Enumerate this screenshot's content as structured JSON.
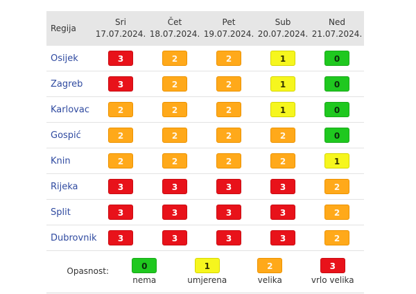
{
  "header": {
    "region_label": "Regija",
    "days": [
      {
        "name": "Sri",
        "date": "17.07.2024."
      },
      {
        "name": "Čet",
        "date": "18.07.2024."
      },
      {
        "name": "Pet",
        "date": "19.07.2024."
      },
      {
        "name": "Sub",
        "date": "20.07.2024."
      },
      {
        "name": "Ned",
        "date": "21.07.2024."
      }
    ]
  },
  "rows": [
    {
      "region": "Osijek",
      "levels": [
        3,
        2,
        2,
        1,
        0
      ]
    },
    {
      "region": "Zagreb",
      "levels": [
        3,
        2,
        2,
        1,
        0
      ]
    },
    {
      "region": "Karlovac",
      "levels": [
        2,
        2,
        2,
        1,
        0
      ]
    },
    {
      "region": "Gospić",
      "levels": [
        2,
        2,
        2,
        2,
        0
      ]
    },
    {
      "region": "Knin",
      "levels": [
        2,
        2,
        2,
        2,
        1
      ]
    },
    {
      "region": "Rijeka",
      "levels": [
        3,
        3,
        3,
        3,
        2
      ]
    },
    {
      "region": "Split",
      "levels": [
        3,
        3,
        3,
        3,
        2
      ]
    },
    {
      "region": "Dubrovnik",
      "levels": [
        3,
        3,
        3,
        3,
        2
      ]
    }
  ],
  "legend": {
    "label": "Opasnost:",
    "items": [
      {
        "level": "0",
        "text": "nema"
      },
      {
        "level": "1",
        "text": "umjerena"
      },
      {
        "level": "2",
        "text": "velika"
      },
      {
        "level": "3",
        "text": "vrlo velika"
      }
    ]
  },
  "colors": {
    "level_0": "#1fc81f",
    "level_1": "#f6f61e",
    "level_2": "#ffa91a",
    "level_3": "#e8121a",
    "header_bg": "#e6e6e6",
    "region_link": "#2f4aa0"
  }
}
